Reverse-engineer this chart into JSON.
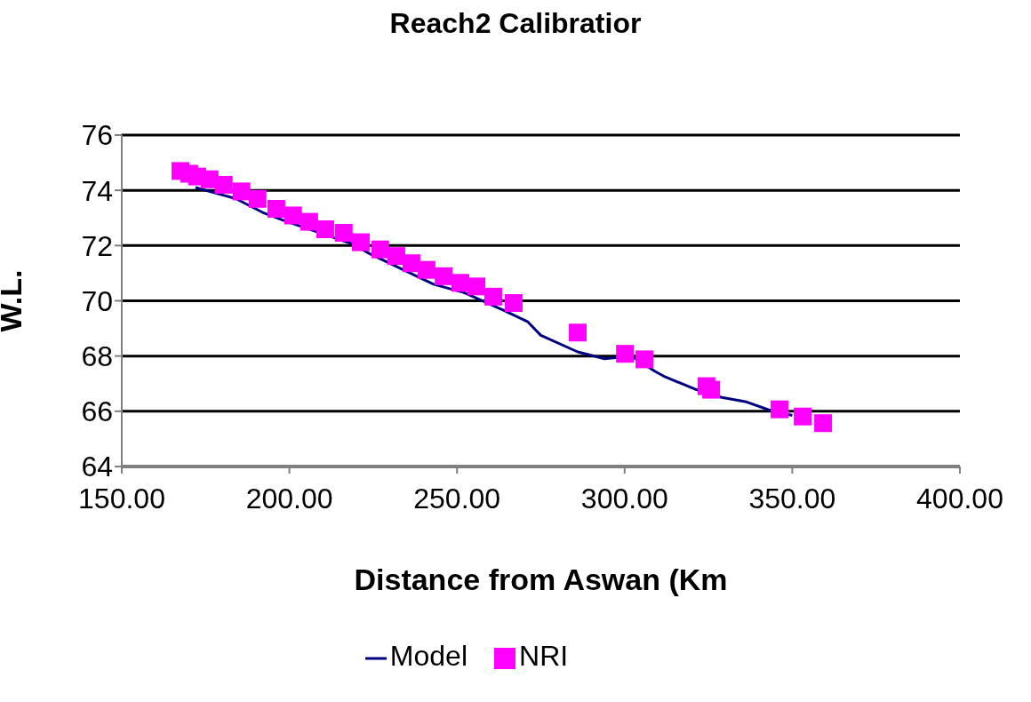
{
  "chart_data": {
    "type": "line",
    "title": "Reach2 Calibratior",
    "xlabel": "Distance from Aswan (Km",
    "ylabel": "W.L.",
    "xlim": [
      150,
      400
    ],
    "xticks": [
      {
        "value": 150,
        "label": "150.00"
      },
      {
        "value": 200,
        "label": "200.00"
      },
      {
        "value": 250,
        "label": "250.00"
      },
      {
        "value": 300,
        "label": "300.00"
      },
      {
        "value": 350,
        "label": "350.00"
      },
      {
        "value": 400,
        "label": "400.00"
      }
    ],
    "ylim": [
      64,
      76
    ],
    "yticks": [
      64,
      66,
      68,
      70,
      72,
      74,
      76
    ],
    "grid": "y",
    "legend": "bottom",
    "series": [
      {
        "name": "Model",
        "color": "#000080",
        "marker": "none",
        "line_style": "solid",
        "x": [
          172,
          184,
          192,
          198.5,
          219,
          224,
          243,
          252,
          264,
          271,
          275,
          286,
          294,
          302,
          309,
          312,
          321,
          329,
          336,
          343,
          350
        ],
        "values": [
          74.1,
          73.7,
          73.2,
          72.9,
          72.05,
          71.7,
          70.6,
          70.3,
          69.65,
          69.25,
          68.75,
          68.15,
          67.9,
          68.0,
          67.45,
          67.25,
          66.8,
          66.5,
          66.35,
          66.05,
          65.85
        ]
      },
      {
        "name": "NRI",
        "type": "scatter",
        "color": "#ff00ff",
        "marker": "square",
        "x": [
          167.5,
          170.1,
          172.5,
          176.2,
          180.4,
          185.7,
          190.5,
          196.1,
          201.1,
          205.9,
          210.7,
          216.2,
          221.3,
          227.1,
          231.9,
          236.4,
          240.9,
          246.0,
          251.0,
          255.8,
          260.8,
          266.9,
          286.0,
          300.1,
          305.9,
          324.4,
          325.8,
          346.2,
          353.1,
          359.2
        ],
        "values": [
          74.7,
          74.6,
          74.5,
          74.4,
          74.2,
          73.96,
          73.69,
          73.33,
          73.09,
          72.86,
          72.59,
          72.46,
          72.12,
          71.86,
          71.62,
          71.36,
          71.12,
          70.89,
          70.65,
          70.52,
          70.15,
          69.92,
          68.85,
          68.08,
          67.88,
          66.91,
          66.78,
          66.07,
          65.81,
          65.57
        ]
      }
    ]
  }
}
